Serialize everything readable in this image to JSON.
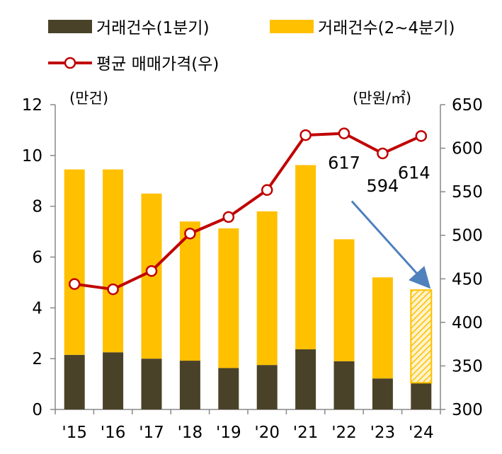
{
  "chart_data": {
    "type": "bar",
    "categories": [
      "'15",
      "'16",
      "'17",
      "'18",
      "'19",
      "'20",
      "'21",
      "'22",
      "'23",
      "'24"
    ],
    "series": [
      {
        "name": "거래건수(1분기)",
        "type": "bar",
        "stack": "volume",
        "axis": "left",
        "values": [
          2.15,
          2.25,
          2.0,
          1.92,
          1.63,
          1.75,
          2.37,
          1.9,
          1.22,
          1.05
        ]
      },
      {
        "name": "거래건수(2~4분기)",
        "type": "bar",
        "stack": "volume",
        "axis": "left",
        "values": [
          7.3,
          7.2,
          6.5,
          5.48,
          5.5,
          6.05,
          7.25,
          4.8,
          3.98,
          3.65
        ],
        "hatched_last": true
      },
      {
        "name": "평균 매매가격(우)",
        "type": "line",
        "axis": "right",
        "marker": "circle",
        "values": [
          444,
          438,
          459,
          502,
          521,
          552,
          615,
          617,
          594,
          614
        ]
      }
    ],
    "data_labels": [
      {
        "series": 2,
        "index": 7,
        "text": "617"
      },
      {
        "series": 2,
        "index": 8,
        "text": "594"
      },
      {
        "series": 2,
        "index": 9,
        "text": "614"
      }
    ],
    "y_left": {
      "unit": "(만건)",
      "ylim": [
        0,
        12
      ],
      "ticks": [
        "0",
        "2",
        "4",
        "6",
        "8",
        "10",
        "12"
      ]
    },
    "y_right": {
      "unit": "(만원/㎡)",
      "ylim": [
        300,
        650
      ],
      "ticks": [
        "300",
        "350",
        "400",
        "450",
        "500",
        "550",
        "600",
        "650"
      ]
    },
    "annotation": {
      "type": "arrow",
      "from": {
        "category_index": 7.2,
        "y_left": 8.2
      },
      "to": {
        "category_index": 9.1,
        "y_left": 5.0
      }
    },
    "legend_position": "top",
    "grid": false,
    "colors": {
      "q1": "#4a4228",
      "q2_4": "#ffc000",
      "line": "#c00000",
      "arrow": "#4f81bd",
      "axis": "#888888"
    }
  }
}
